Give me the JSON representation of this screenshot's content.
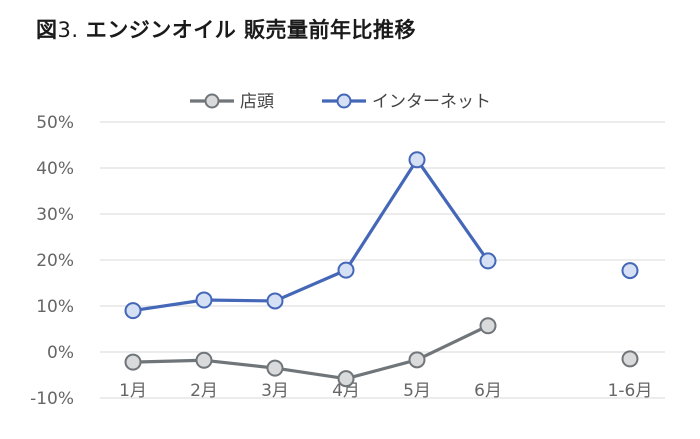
{
  "title": {
    "prefix": "図",
    "number": "3. ",
    "text": "エンジンオイル 販売量前年比推移"
  },
  "chart_data": {
    "type": "line",
    "categories": [
      "1月",
      "2月",
      "3月",
      "4月",
      "5月",
      "6月",
      "",
      "1-6月"
    ],
    "series": [
      {
        "name": "店頭",
        "color": "#6f7579",
        "values": [
          -2.2,
          -1.8,
          -3.5,
          -5.8,
          -1.7,
          5.7,
          null,
          -1.5
        ]
      },
      {
        "name": "インターネット",
        "color": "#4467b8",
        "values": [
          9.0,
          11.3,
          11.1,
          17.8,
          41.8,
          19.8,
          null,
          17.7
        ]
      }
    ],
    "ylim": [
      -10,
      50
    ],
    "yticks": [
      "-10%",
      "0%",
      "10%",
      "20%",
      "30%",
      "40%",
      "50%"
    ],
    "ytick_values": [
      -10,
      0,
      10,
      20,
      30,
      40,
      50
    ],
    "grid": true,
    "legend_position": "top"
  }
}
